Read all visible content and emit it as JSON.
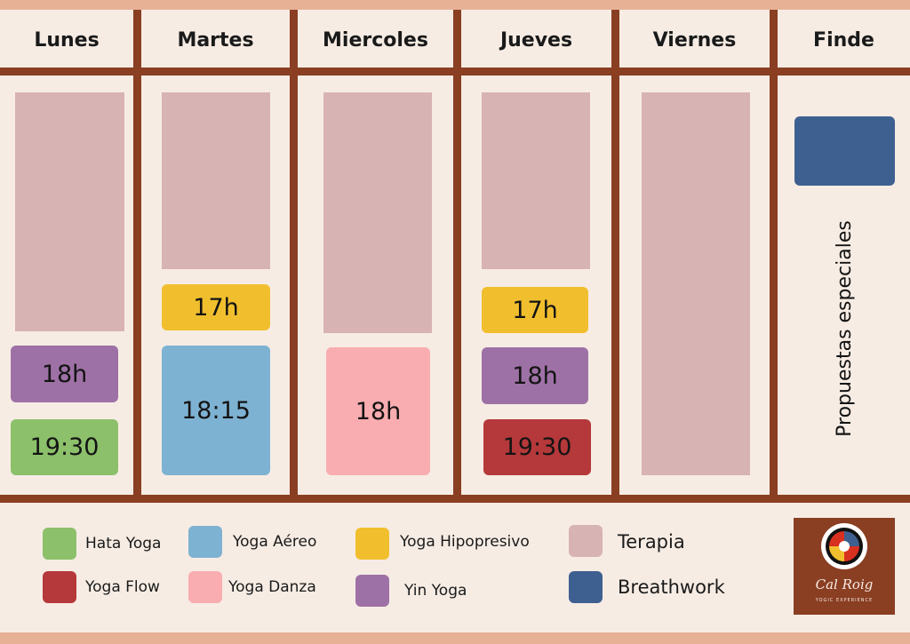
{
  "days": [
    "Lunes",
    "Martes",
    "Miercoles",
    "Jueves",
    "Viernes",
    "Finde"
  ],
  "colors": {
    "hata_yoga": "#8cc06a",
    "yoga_flow": "#b5383a",
    "yoga_aereo": "#7eb2d2",
    "yoga_danza": "#f9adb0",
    "yoga_hipopresivo": "#f1bf2e",
    "yin_yoga": "#9e71a6",
    "terapia": "#d8b3b3",
    "breathwork": "#3e6090",
    "frame": "#8a3e22",
    "background": "#f6ece4"
  },
  "schedule": {
    "lunes": {
      "yin": "18h",
      "hata": "19:30"
    },
    "martes": {
      "hipopresivo": "17h",
      "aereo": "18:15"
    },
    "miercoles": {
      "danza": "18h"
    },
    "jueves": {
      "hipopresivo": "17h",
      "yin": "18h",
      "flow": "19:30"
    }
  },
  "finde_label": "Propuestas especiales",
  "legend": {
    "hata_yoga": "Hata Yoga",
    "yoga_flow": "Yoga Flow",
    "yoga_aereo": "Yoga Aéreo",
    "yoga_danza": "Yoga Danza",
    "yoga_hipopresivo": "Yoga Hipopresivo",
    "yin_yoga": "Yin Yoga",
    "terapia": "Terapia",
    "breathwork": "Breathwork"
  },
  "logo": {
    "name": "Cal Roig",
    "tagline": "YOGIC EXPERIENCE"
  }
}
